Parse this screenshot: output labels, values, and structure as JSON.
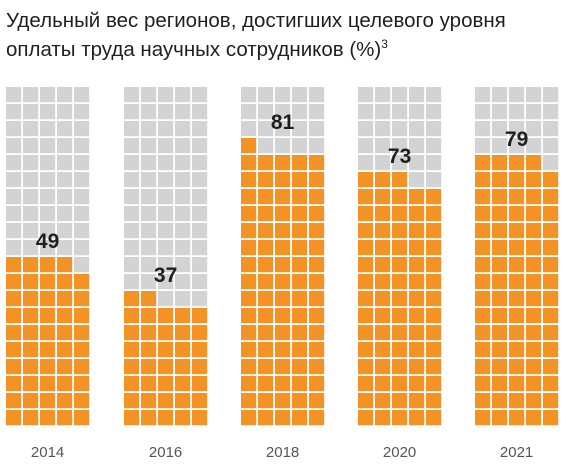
{
  "chart_data": {
    "type": "waffle",
    "title": "Удельный вес регионов, достигших целевого уровня оплаты труда научных сотрудников (%)",
    "title_superscript": "3",
    "unit": "%",
    "categories": [
      "2014",
      "2016",
      "2018",
      "2020",
      "2021"
    ],
    "values": [
      49,
      37,
      81,
      73,
      79
    ],
    "grid": {
      "columns": 5,
      "rows": 20,
      "cells_per_unit": 1,
      "max": 100
    },
    "fill_order": "bottom-up, left-to-right",
    "colors": {
      "filled": "#F39325",
      "empty": "#D3D3D3",
      "label": "#1f1f1f",
      "axis_label": "#555555"
    }
  }
}
